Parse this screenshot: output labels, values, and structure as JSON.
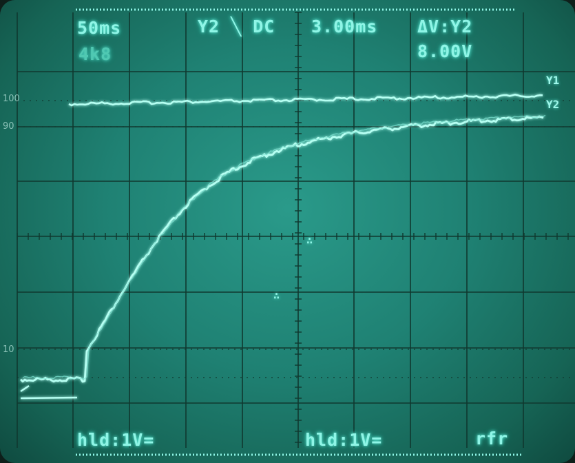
{
  "readouts": {
    "timebase": "50ms",
    "sample": "4k8",
    "trigger": "Y2 ╲ DC",
    "cursor_time": "3.00ms",
    "delta_label": "ΔV:Y2",
    "delta_value": "8.00V",
    "ch1_mode": "hld:1V=",
    "ch2_mode": "hld:1V=",
    "refresh": "rfr"
  },
  "scale_labels": {
    "top": "100",
    "upper": "90",
    "lower": "10"
  },
  "trace_labels": {
    "y1": "Y1",
    "y2": "Y2"
  },
  "colors": {
    "screen": "#1f8173",
    "grid": "#10382f",
    "trace": "#a8fff0",
    "text": "#8ff5e6"
  }
}
